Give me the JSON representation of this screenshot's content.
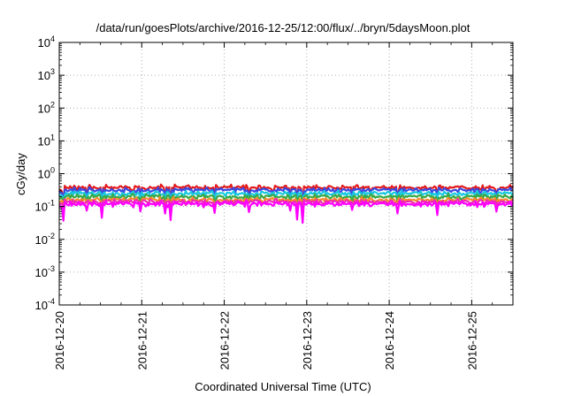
{
  "chart_data": {
    "type": "line",
    "title": "/data/run/goesPlots/archive/2016-12-25/12:00/flux/../bryn/5daysMoon.plot",
    "xlabel": "Coordinated Universal Time (UTC)",
    "ylabel": "cGy/day",
    "yscale": "log",
    "ylim": [
      0.0001,
      10000
    ],
    "y_ticks": [
      {
        "base": "10",
        "exp": "-4"
      },
      {
        "base": "10",
        "exp": "-3"
      },
      {
        "base": "10",
        "exp": "-2"
      },
      {
        "base": "10",
        "exp": "-1"
      },
      {
        "base": "10",
        "exp": "0"
      },
      {
        "base": "10",
        "exp": "1"
      },
      {
        "base": "10",
        "exp": "2"
      },
      {
        "base": "10",
        "exp": "3"
      },
      {
        "base": "10",
        "exp": "4"
      }
    ],
    "xlim": [
      "2016-12-20",
      "2016-12-25 12:00"
    ],
    "x_ticks": [
      "2016-12-20",
      "2016-12-21",
      "2016-12-22",
      "2016-12-23",
      "2016-12-24",
      "2016-12-25"
    ],
    "grid": true,
    "legend": "none",
    "series": [
      {
        "color": "#e41a1c",
        "level": 0.38
      },
      {
        "color": "#3a49e0",
        "level": 0.32
      },
      {
        "color": "#18c8e0",
        "level": 0.25
      },
      {
        "color": "#3aa845",
        "level": 0.2
      },
      {
        "color": "#f58a2a",
        "level": 0.16
      },
      {
        "color": "#ee2ab5",
        "level": 0.14
      },
      {
        "color": "#ff00ff",
        "level": 0.12
      }
    ],
    "dips": [
      {
        "day": 0.05,
        "factor": 0.35
      },
      {
        "day": 0.33,
        "factor": 0.6
      },
      {
        "day": 0.52,
        "factor": 0.4
      },
      {
        "day": 0.98,
        "factor": 0.55
      },
      {
        "day": 1.28,
        "factor": 0.5
      },
      {
        "day": 1.35,
        "factor": 0.3
      },
      {
        "day": 1.88,
        "factor": 0.55
      },
      {
        "day": 2.3,
        "factor": 0.55
      },
      {
        "day": 2.8,
        "factor": 0.6
      },
      {
        "day": 2.88,
        "factor": 0.35
      },
      {
        "day": 2.95,
        "factor": 0.28
      },
      {
        "day": 3.55,
        "factor": 0.6
      },
      {
        "day": 4.1,
        "factor": 0.55
      },
      {
        "day": 4.58,
        "factor": 0.5
      },
      {
        "day": 5.3,
        "factor": 0.5
      }
    ]
  }
}
